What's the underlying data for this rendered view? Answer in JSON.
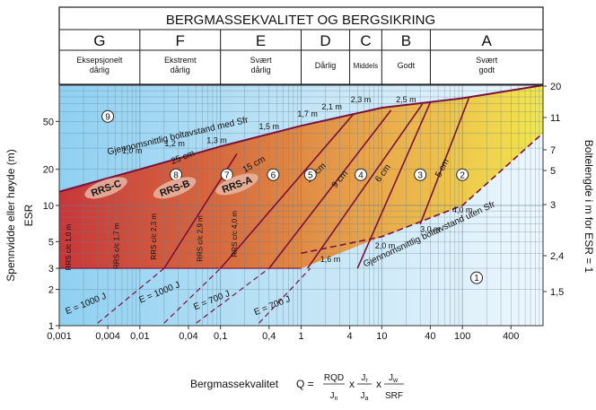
{
  "chart_data": {
    "type": "line",
    "title": "BERGMASSEKVALITET OG BERGSIKRING",
    "xscale": "log",
    "yscale": "log",
    "xlim": [
      0.001,
      1000
    ],
    "ylim": [
      1,
      100
    ],
    "x_ticks": [
      "0,001",
      "0,004",
      "0,01",
      "0,04",
      "0,1",
      "0,4",
      "1",
      "4",
      "10",
      "40",
      "100",
      "400"
    ],
    "y_ticks_left": [
      "1",
      "2",
      "3",
      "5",
      "10",
      "20",
      "50"
    ],
    "y_ticks_right_bolt": [
      "1,5",
      "2,4",
      "3",
      "5",
      "7",
      "11",
      "20"
    ],
    "ylabel": "Spennvidde eller høyde (m)",
    "ylabel_sub": "ESR",
    "ylabel_right": "Boltelengde i m for ESR = 1",
    "xlabel": {
      "lead": "Bergmassekvalitet",
      "lhs": "Q =",
      "f1": {
        "num": "RQD",
        "den": "J",
        "den_sub": "n"
      },
      "x1": "x",
      "f2": {
        "num": "J",
        "num_sub": "r",
        "den": "J",
        "den_sub": "a"
      },
      "x2": "x",
      "f3": {
        "num": "J",
        "num_sub": "w",
        "den": "SRF"
      }
    },
    "classes": [
      {
        "letter": "G",
        "desc": "Eksepsjonelt dårlig",
        "q_range": [
          0.001,
          0.01
        ]
      },
      {
        "letter": "F",
        "desc": "Ekstremt dårlig",
        "q_range": [
          0.01,
          0.1
        ]
      },
      {
        "letter": "E",
        "desc": "Svært dårlig",
        "q_range": [
          0.1,
          1
        ]
      },
      {
        "letter": "D",
        "desc": "Dårlig",
        "q_range": [
          1,
          4
        ]
      },
      {
        "letter": "C",
        "desc": "Middels",
        "q_range": [
          4,
          10
        ]
      },
      {
        "letter": "B",
        "desc": "Godt",
        "q_range": [
          10,
          40
        ]
      },
      {
        "letter": "A",
        "desc": "Svært godt",
        "q_range": [
          40,
          1000
        ]
      }
    ],
    "zones": [
      {
        "label": "1"
      },
      {
        "label": "2"
      },
      {
        "label": "3"
      },
      {
        "label": "4"
      },
      {
        "label": "5"
      },
      {
        "label": "6"
      },
      {
        "label": "7"
      },
      {
        "label": "8"
      },
      {
        "label": "9"
      }
    ],
    "series": [
      {
        "name": "Gjennomsnittlig boltavstand med Sfr",
        "points": [
          [
            0.001,
            13
          ],
          [
            0.01,
            20
          ],
          [
            0.1,
            31
          ],
          [
            1,
            46
          ],
          [
            10,
            65
          ],
          [
            100,
            78
          ],
          [
            1000,
            100
          ]
        ]
      },
      {
        "name": "Gjennomsnittlig boltavstand uten Sfr",
        "points": [
          [
            1,
            4
          ],
          [
            10,
            5.5
          ],
          [
            100,
            10
          ],
          [
            1000,
            40
          ]
        ]
      },
      {
        "name": "5 cm",
        "points": [
          [
            30,
            7
          ],
          [
            120,
            78
          ]
        ]
      },
      {
        "name": "6 cm",
        "points": [
          [
            5,
            3
          ],
          [
            40,
            72
          ]
        ]
      },
      {
        "name": "9 cm",
        "points": [
          [
            1.2,
            3
          ],
          [
            32,
            70
          ]
        ]
      },
      {
        "name": "12 cm",
        "points": [
          [
            0.4,
            3
          ],
          [
            13,
            62
          ]
        ]
      },
      {
        "name": "15 cm",
        "points": [
          [
            0.1,
            3
          ],
          [
            4.5,
            58
          ]
        ]
      },
      {
        "name": "25 cm",
        "points": [
          [
            0.02,
            3
          ],
          [
            0.16,
            27
          ]
        ]
      }
    ],
    "bolt_spacing_labels": [
      "1,0 m",
      "1,2 m",
      "1,3 m",
      "1,5 m",
      "1,7 m",
      "2,1 m",
      "2,3 m",
      "2,5 m",
      "3,0 m",
      "2,0 m",
      "1,6 m",
      "4,0 m"
    ],
    "rrs_labels": [
      "RRS-C",
      "RRS-B",
      "RRS-A"
    ],
    "rrs_spacing_labels": [
      "RRS c/c 1,0 m",
      "RRS c/c 1,7 m",
      "RRS c/c 2,3 m",
      "RRS c/c 2,9 m",
      "RRS c/c 4,0 m"
    ],
    "energy_labels": [
      "E = 1000 J",
      "E = 1000 J",
      "E = 700 J",
      "E = 700 J"
    ]
  }
}
